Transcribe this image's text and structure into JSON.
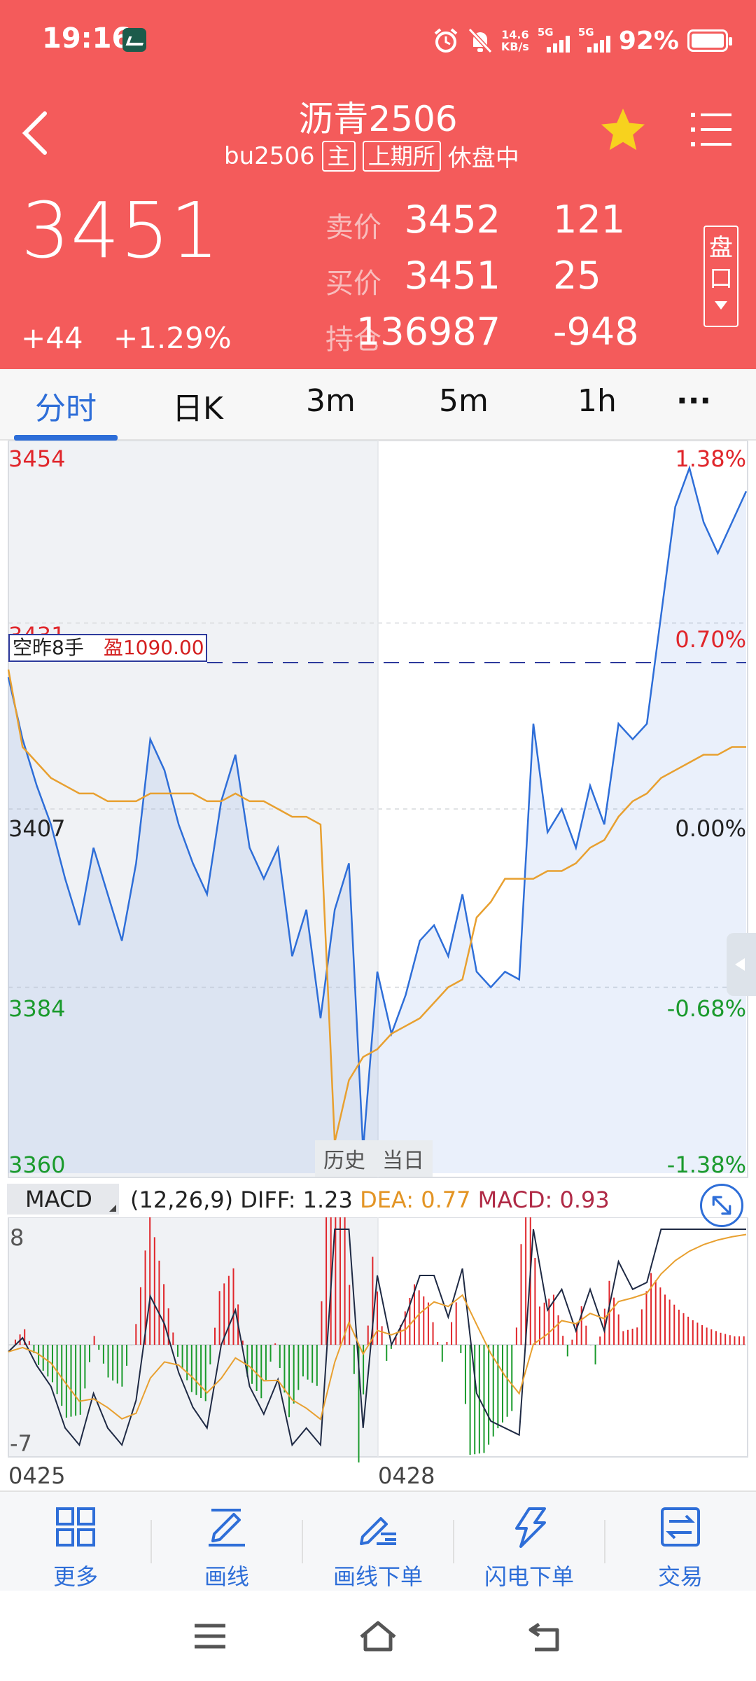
{
  "status_bar": {
    "time": "19:16",
    "net_speed_top": "14.6",
    "net_speed_bottom": "KB/s",
    "signal1_label": "5G",
    "signal2_label": "5G",
    "battery": "92%"
  },
  "header": {
    "title": "沥青2506",
    "symbol": "bu2506",
    "main_tag": "主",
    "exchange_tag": "上期所",
    "session_status": "休盘中",
    "last_price": "3451",
    "change": "+44",
    "change_pct": "+1.29%",
    "quotes": [
      {
        "label": "卖价",
        "price": "3452",
        "volume": "121"
      },
      {
        "label": "买价",
        "price": "3451",
        "volume": "25"
      },
      {
        "label": "持仓",
        "price": "136987",
        "volume": "-948"
      }
    ],
    "pankou_label_1": "盘",
    "pankou_label_2": "口"
  },
  "tabs": [
    {
      "label": "分时",
      "active": true
    },
    {
      "label": "日K",
      "active": false
    },
    {
      "label": "3m",
      "active": false
    },
    {
      "label": "5m",
      "active": false
    },
    {
      "label": "1h",
      "active": false
    },
    {
      "label": "···",
      "active": false
    }
  ],
  "chart": {
    "left_labels": [
      "3454",
      "3431",
      "3407",
      "3384",
      "3360"
    ],
    "right_labels": [
      "1.38%",
      "0.70%",
      "0.00%",
      "-0.68%",
      "-1.38%"
    ],
    "position_text": "空昨8手",
    "position_profit": "盈1090.00",
    "history_label": "历史",
    "today_label": "当日",
    "colors": {
      "price_line": "#2e6ed8",
      "avg_line": "#e8a030",
      "up": "#e0262b",
      "down": "#1a9a2c"
    }
  },
  "chart_data": {
    "type": "line",
    "ylim": [
      3360,
      3454
    ],
    "prev_settle": 3407,
    "sessions": [
      "0425",
      "0428"
    ],
    "price": [
      3424,
      3416,
      3410,
      3405,
      3398,
      3392,
      3402,
      3396,
      3390,
      3400,
      3416,
      3412,
      3405,
      3400,
      3396,
      3408,
      3414,
      3402,
      3398,
      3402,
      3388,
      3394,
      3380,
      3394,
      3400,
      3363,
      3386,
      3378,
      3383,
      3390,
      3392,
      3388,
      3396,
      3386,
      3384,
      3386,
      3385,
      3418,
      3404,
      3407,
      3402,
      3410,
      3405,
      3418,
      3416,
      3418,
      3432,
      3446,
      3451,
      3444,
      3440,
      3444,
      3448
    ],
    "avg": [
      3425,
      3415,
      3413,
      3411,
      3410,
      3409,
      3409,
      3408,
      3408,
      3408,
      3409,
      3409,
      3409,
      3409,
      3408,
      3408,
      3409,
      3408,
      3408,
      3407,
      3406,
      3406,
      3405,
      3364,
      3372,
      3375,
      3376,
      3378,
      3379,
      3380,
      3382,
      3384,
      3385,
      3393,
      3395,
      3398,
      3398,
      3398,
      3399,
      3399,
      3400,
      3402,
      3403,
      3406,
      3408,
      3409,
      3411,
      3412,
      3413,
      3414,
      3414,
      3415,
      3415
    ],
    "macd_panel": {
      "ylim": [
        -7,
        8
      ],
      "params": "(12,26,9)"
    }
  },
  "macd": {
    "name": "MACD",
    "params": "(12,26,9)",
    "diff": "DIFF: 1.23",
    "dea": "DEA: 0.77",
    "macd": "MACD: 0.93",
    "max_label": "8",
    "min_label": "-7"
  },
  "dates": [
    "0425",
    "0428"
  ],
  "toolbar": [
    {
      "label": "更多",
      "icon": "grid-icon"
    },
    {
      "label": "画线",
      "icon": "pencil-icon"
    },
    {
      "label": "画线下单",
      "icon": "draw-order-icon"
    },
    {
      "label": "闪电下单",
      "icon": "lightning-icon"
    },
    {
      "label": "交易",
      "icon": "trade-icon"
    }
  ]
}
